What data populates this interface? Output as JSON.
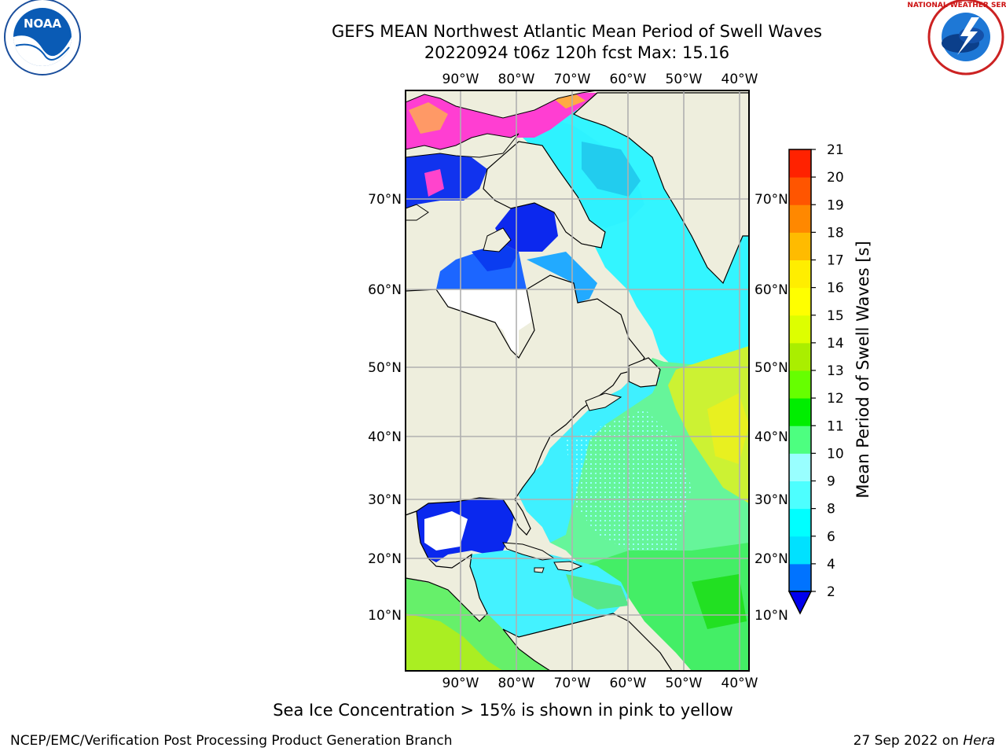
{
  "title_line1": "GEFS MEAN Northwest Atlantic Mean Period of Swell Waves",
  "title_line2": "20220924 t06z 120h fcst   Max: 15.16",
  "colorbar": {
    "label": "Mean Period of Swell Waves [s]",
    "ticks": [
      "2",
      "4",
      "6",
      "8",
      "9",
      "10",
      "11",
      "12",
      "13",
      "14",
      "15",
      "16",
      "17",
      "18",
      "19",
      "20",
      "21"
    ],
    "colors": [
      "#0073ff",
      "#00e1ff",
      "#00ffff",
      "#4dffff",
      "#99ffff",
      "#4dff80",
      "#00ee00",
      "#66ff00",
      "#aaee00",
      "#ddff00",
      "#ffff00",
      "#ffee00",
      "#ffbb00",
      "#ff8800",
      "#ff5500",
      "#ff2200"
    ],
    "extend_color": "#0000ee"
  },
  "map": {
    "lon_labels_top": [
      "90°W",
      "80°W",
      "70°W",
      "60°W",
      "50°W",
      "40°W"
    ],
    "lon_labels_bottom": [
      "90°W",
      "80°W",
      "70°W",
      "60°W",
      "50°W",
      "40°W"
    ],
    "lat_labels": [
      "70°N",
      "60°N",
      "50°N",
      "40°N",
      "30°N",
      "20°N",
      "10°N"
    ],
    "colors": {
      "land": "#eeeedd",
      "grid": "#b0b0b0",
      "ocean_north": "#44ffff",
      "ocean_south": "#55ff77",
      "ice": "#ff44cc"
    }
  },
  "logos": {
    "left": "NOAA",
    "right": "NATIONAL WEATHER SERVICE"
  },
  "ice_note": "Sea Ice Concentration > 15% is shown in pink to yellow",
  "footer_left": "NCEP/EMC/Verification Post Processing Product Generation Branch",
  "footer_right_date": "27 Sep 2022 on ",
  "footer_right_host": "Hera"
}
